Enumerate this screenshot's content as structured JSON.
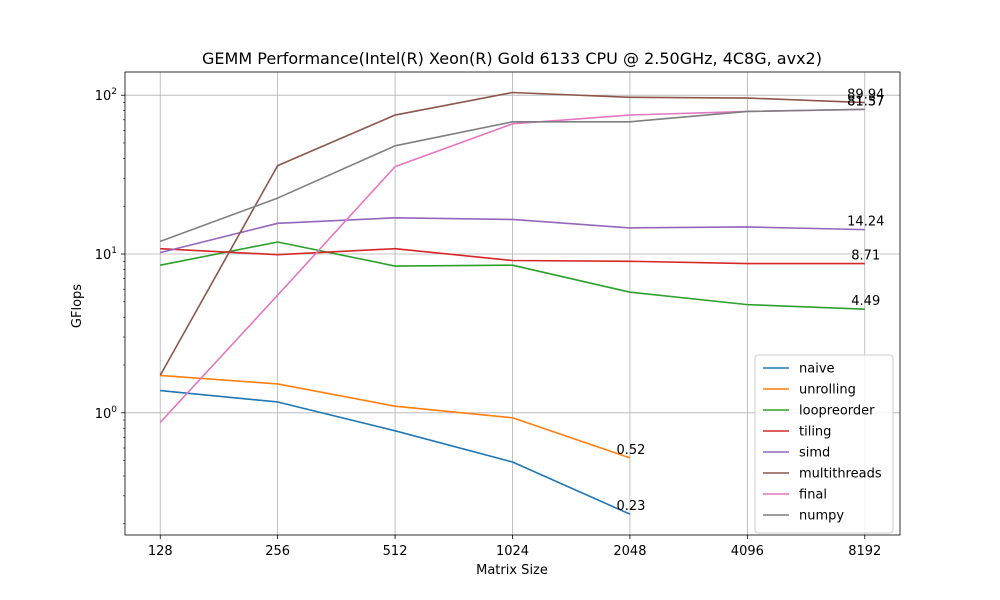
{
  "chart_data": {
    "type": "line",
    "title": "GEMM Performance(Intel(R) Xeon(R) Gold 6133 CPU @ 2.50GHz, 4C8G, avx2)",
    "xlabel": "Matrix Size",
    "ylabel": "GFlops",
    "x": [
      128,
      256,
      512,
      1024,
      2048,
      4096,
      8192
    ],
    "x_tick_labels": [
      "128",
      "256",
      "512",
      "1024",
      "2048",
      "4096",
      "8192"
    ],
    "xscale": "log2",
    "yscale": "log",
    "ylim": [
      0.17,
      140
    ],
    "y_ticks": [
      {
        "value": 1,
        "base": "10",
        "exp": "0"
      },
      {
        "value": 10,
        "base": "10",
        "exp": "1"
      },
      {
        "value": 100,
        "base": "10",
        "exp": "2"
      }
    ],
    "grid": true,
    "legend_position": "lower-right",
    "series": [
      {
        "name": "naive",
        "color": "#1f77b4",
        "values": [
          1.38,
          1.17,
          0.77,
          0.49,
          0.23,
          null,
          null
        ],
        "end_label": "0.23"
      },
      {
        "name": "unrolling",
        "color": "#ff7f0e",
        "values": [
          1.72,
          1.52,
          1.1,
          0.93,
          0.52,
          null,
          null
        ],
        "end_label": "0.52"
      },
      {
        "name": "loopreorder",
        "color": "#2ca02c",
        "values": [
          8.5,
          11.9,
          8.4,
          8.5,
          5.75,
          4.8,
          4.49
        ],
        "end_label": "4.49"
      },
      {
        "name": "tiling",
        "color": "#d62728",
        "values": [
          10.8,
          9.9,
          10.8,
          9.1,
          9.0,
          8.7,
          8.71
        ],
        "end_label": "8.71"
      },
      {
        "name": "simd",
        "color": "#9467bd",
        "values": [
          10.2,
          15.6,
          16.9,
          16.5,
          14.6,
          14.8,
          14.24
        ],
        "end_label": "14.24"
      },
      {
        "name": "multithreads",
        "color": "#8c564b",
        "values": [
          1.72,
          36.0,
          75.0,
          104.0,
          97.0,
          96.0,
          89.94
        ],
        "end_label": "89.94"
      },
      {
        "name": "final",
        "color": "#e377c2",
        "values": [
          0.87,
          5.5,
          35.5,
          66.0,
          75.0,
          79.0,
          81.37
        ],
        "end_label": "81.37"
      },
      {
        "name": "numpy",
        "color": "#7f7f7f",
        "values": [
          12.0,
          22.5,
          48.0,
          68.0,
          68.0,
          79.0,
          81.57
        ],
        "end_label": "81.57"
      }
    ]
  }
}
